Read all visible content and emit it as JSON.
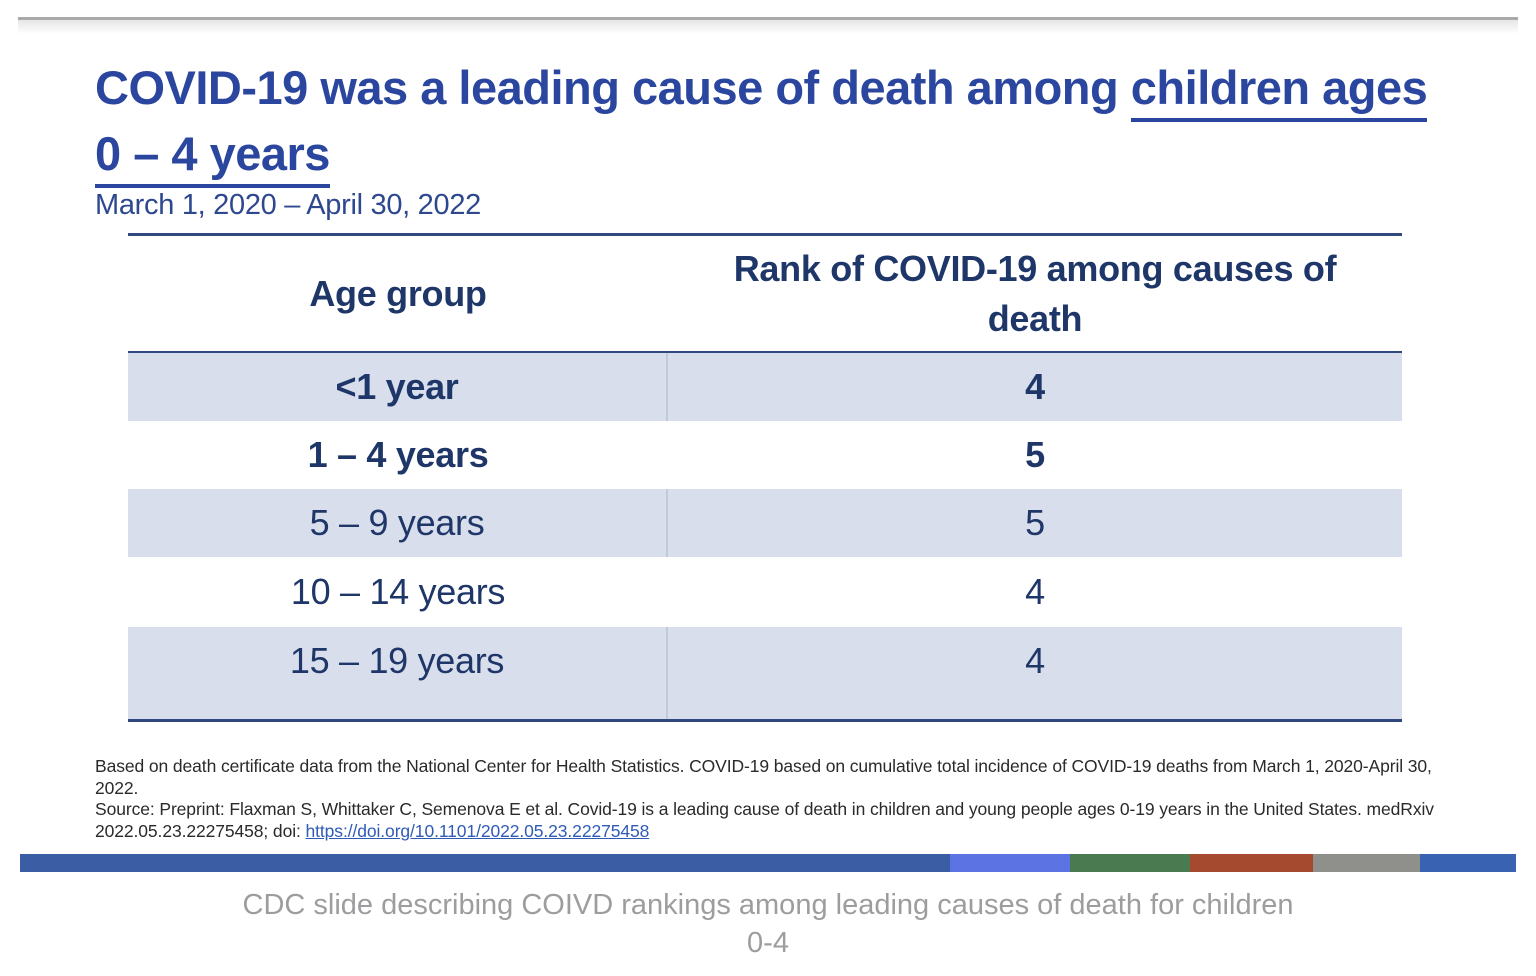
{
  "slide": {
    "title": {
      "plain": "COVID-19 was a leading cause of death among",
      "underline1": "children ages",
      "underline2": "0 – 4 years"
    },
    "subtitle": "March 1, 2020 – April 30, 2022",
    "table": {
      "col1_header": "Age group",
      "col2_header": "Rank of COVID-19 among causes of death",
      "rows": [
        {
          "age": "<1 year",
          "rank": "4"
        },
        {
          "age": "1 – 4 years",
          "rank": "5"
        },
        {
          "age": "5 – 9 years",
          "rank": "5"
        },
        {
          "age": "10 – 14 years",
          "rank": "4"
        },
        {
          "age": "15 – 19 years",
          "rank": "4"
        }
      ]
    },
    "footnote": {
      "line1": "Based on death certificate data from the National Center for Health Statistics. COVID-19 based on cumulative total incidence of COVID-19 deaths from March 1, 2020-April 30, 2022.",
      "source_prefix": "Source: Preprint: Flaxman S, Whittaker C, Semenova E et al. Covid-19 is a leading cause of death in children and young people ages 0-19 years in the United States. medRxiv 2022.05.23.22275458; doi: ",
      "doi_link": "https://doi.org/10.1101/2022.05.23.22275458"
    }
  },
  "caption": "CDC slide describing COIVD rankings among leading causes of death for children 0-4",
  "chart_data": {
    "type": "table",
    "title": "COVID-19 was a leading cause of death among children ages 0 – 4 years",
    "subtitle": "March 1, 2020 – April 30, 2022",
    "columns": [
      "Age group",
      "Rank of COVID-19 among causes of death"
    ],
    "categories": [
      "<1 year",
      "1 – 4 years",
      "5 – 9 years",
      "10 – 14 years",
      "15 – 19 years"
    ],
    "values": [
      4,
      5,
      5,
      4,
      4
    ]
  },
  "colors": {
    "title_blue": "#2b469e",
    "subtitle_blue": "#2e4890",
    "table_navy": "#1e3668",
    "row_shade": "#d9deed",
    "rule_navy": "#31487e",
    "link_blue": "#2f5bb7",
    "caption_gray": "#9d9da0",
    "bar_main": "#3a5da3",
    "bar_seg1": "#5c74e3",
    "bar_seg2": "#4a7b50",
    "bar_seg3": "#a64a2f",
    "bar_seg4": "#8f8f8c",
    "bar_seg5": "#3a62b3"
  }
}
